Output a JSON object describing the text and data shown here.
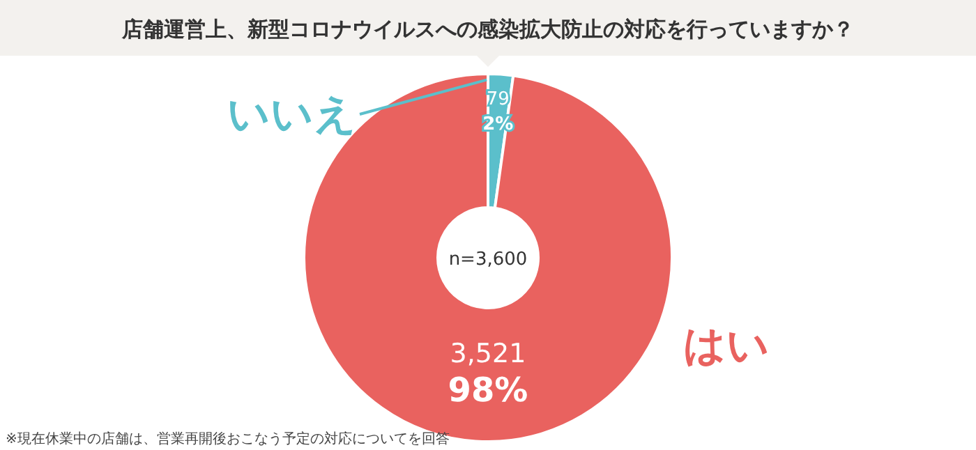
{
  "chart_data": {
    "type": "donut",
    "title": "店舗運営上、新型コロナウイルスへの感染拡大防止の対応を行っていますか？",
    "categories": [
      "はい",
      "いいえ"
    ],
    "values": [
      3521,
      79
    ],
    "colors": [
      "#e9625f",
      "#5bbfcb"
    ],
    "value_labels": [
      "3,521\n98%",
      "79\n2%"
    ],
    "annotations": [
      "n=3,600",
      "※現在休業中の店舗は、営業再開後おこなう予定の対応についてを回答"
    ]
  }
}
